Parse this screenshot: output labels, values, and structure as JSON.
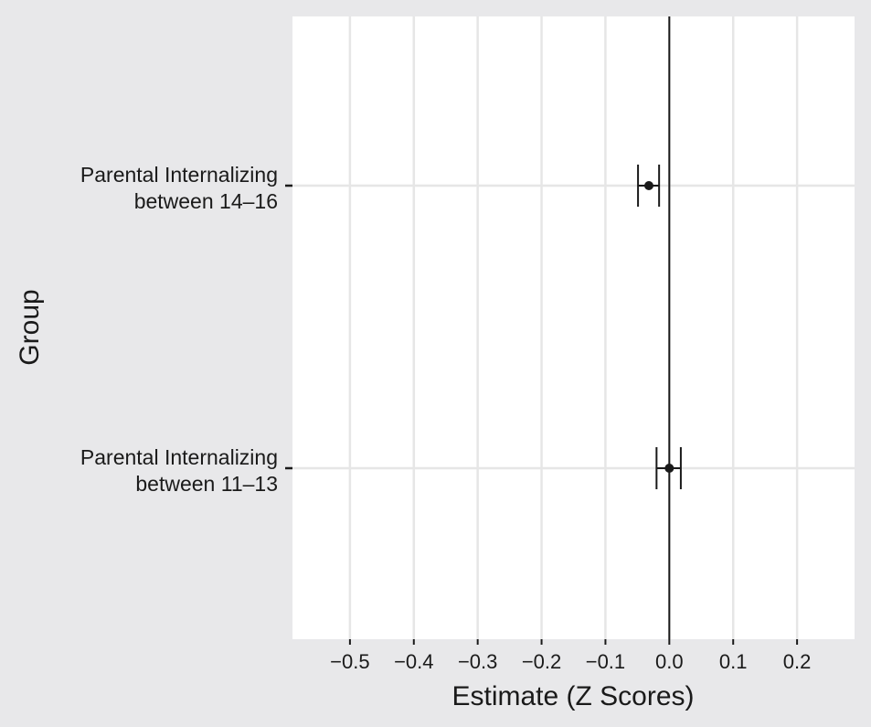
{
  "chart_data": {
    "type": "scatter",
    "subtype": "forest-plot",
    "title": "",
    "xlabel": "Estimate (Z Scores)",
    "ylabel": "Group",
    "xlim": [
      -0.59,
      0.29
    ],
    "x_ticks": [
      -0.5,
      -0.4,
      -0.3,
      -0.2,
      -0.1,
      0.0,
      0.1,
      0.2
    ],
    "x_tick_labels": [
      "−0.5",
      "−0.4",
      "−0.3",
      "−0.2",
      "−0.1",
      "0.0",
      "0.1",
      "0.2"
    ],
    "reference_line_x": 0.0,
    "grid": true,
    "colors": {
      "outer_background": "#e8e8ea",
      "panel_background": "#ffffff",
      "grid": "#e6e6e6",
      "marks": "#1a1a1a"
    },
    "categories": [
      [
        "Parental Internalizing",
        "between 14–16"
      ],
      [
        "Parental Internalizing",
        "between 11–13"
      ]
    ],
    "points": [
      {
        "group": "Parental Internalizing between 14–16",
        "estimate": -0.032,
        "ci_low": -0.049,
        "ci_high": -0.016
      },
      {
        "group": "Parental Internalizing between 11–13",
        "estimate": 0.0,
        "ci_low": -0.02,
        "ci_high": 0.018
      }
    ]
  }
}
